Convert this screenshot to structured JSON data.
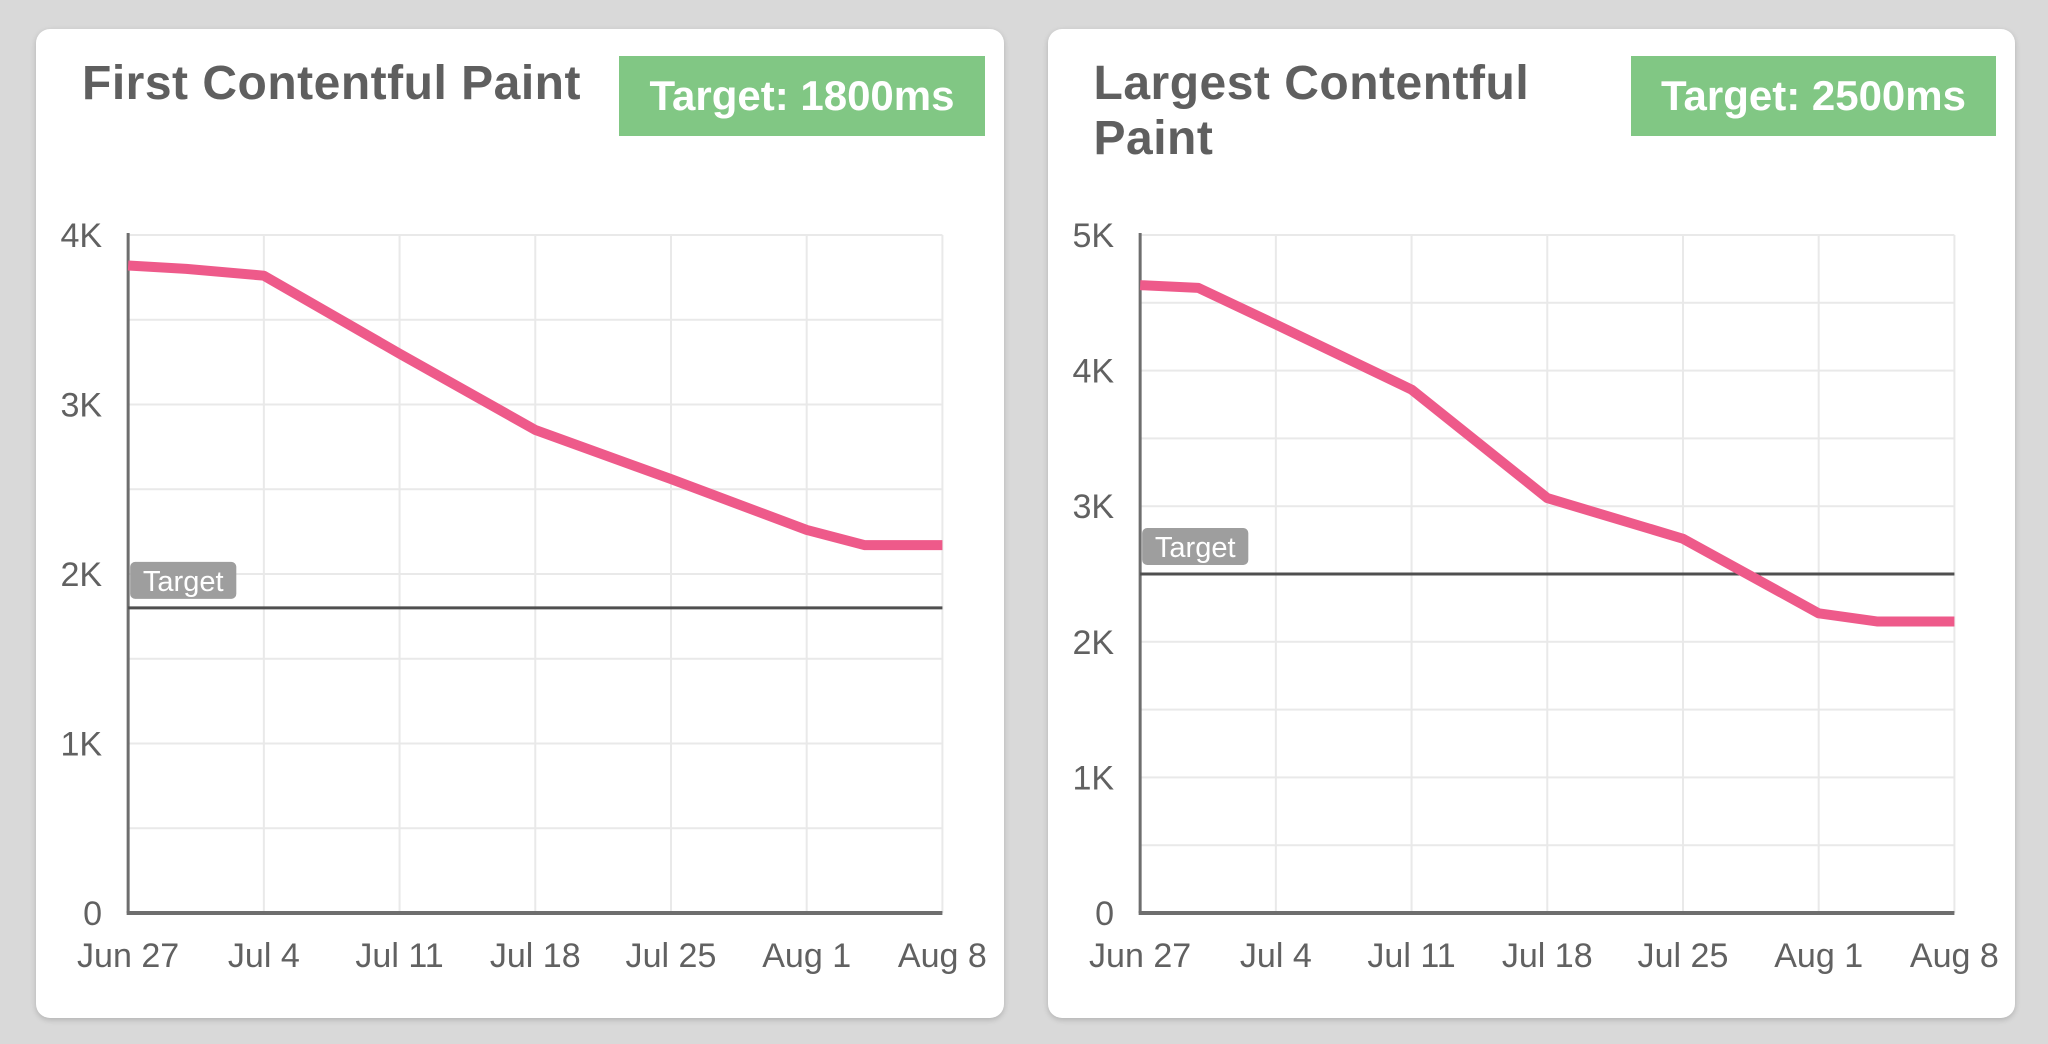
{
  "colors": {
    "page_background": "#d9d9d9",
    "card_background": "#ffffff",
    "line": "#ee5a8a",
    "badge_bg": "#81c784",
    "badge_text": "#ffffff",
    "grid": "#e9e9e9",
    "axis": "#6e6e6e",
    "target_line": "#4f4f4f",
    "target_label_bg": "#9e9e9e",
    "text": "#616161",
    "title_text": "#5f5f5f"
  },
  "chart_data": [
    {
      "type": "line",
      "title": "First Contentful Paint",
      "badge": "Target: 1800ms",
      "xlabel": "",
      "ylabel": "",
      "ylim": [
        0,
        4000
      ],
      "y_tick_values": [
        0,
        1000,
        2000,
        3000,
        4000
      ],
      "y_tick_labels": [
        "0",
        "1K",
        "2K",
        "3K",
        "4K"
      ],
      "grid_y_step": 500,
      "x_range_days": [
        0,
        42
      ],
      "x_tick_days": [
        0,
        7,
        14,
        21,
        28,
        35,
        42
      ],
      "x_tick_labels": [
        "Jun 27",
        "Jul 4",
        "Jul 11",
        "Jul 18",
        "Jul 25",
        "Aug 1",
        "Aug 8"
      ],
      "target": {
        "label": "Target",
        "value": 1800
      },
      "legend": "none",
      "grid": true,
      "series": [
        {
          "name": "First Contentful Paint (ms)",
          "x_days": [
            0,
            3,
            7,
            14,
            21,
            28,
            35,
            38,
            42
          ],
          "values": [
            3820,
            3800,
            3760,
            3300,
            2850,
            2560,
            2260,
            2170,
            2170
          ]
        }
      ]
    },
    {
      "type": "line",
      "title": "Largest Contentful Paint",
      "badge": "Target: 2500ms",
      "xlabel": "",
      "ylabel": "",
      "ylim": [
        0,
        5000
      ],
      "y_tick_values": [
        0,
        1000,
        2000,
        3000,
        4000,
        5000
      ],
      "y_tick_labels": [
        "0",
        "1K",
        "2K",
        "3K",
        "4K",
        "5K"
      ],
      "grid_y_step": 500,
      "x_range_days": [
        0,
        42
      ],
      "x_tick_days": [
        0,
        7,
        14,
        21,
        28,
        35,
        42
      ],
      "x_tick_labels": [
        "Jun 27",
        "Jul 4",
        "Jul 11",
        "Jul 18",
        "Jul 25",
        "Aug 1",
        "Aug 8"
      ],
      "target": {
        "label": "Target",
        "value": 2500
      },
      "legend": "none",
      "grid": true,
      "series": [
        {
          "name": "Largest Contentful Paint (ms)",
          "x_days": [
            0,
            3,
            7,
            14,
            21,
            28,
            35,
            38,
            42
          ],
          "values": [
            4630,
            4610,
            4340,
            3860,
            3060,
            2760,
            2210,
            2150,
            2150
          ]
        }
      ]
    }
  ]
}
